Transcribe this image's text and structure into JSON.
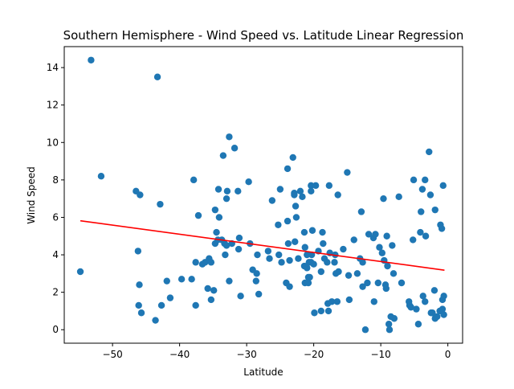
{
  "chart_data": {
    "type": "scatter",
    "title": "Southern Hemisphere - Wind Speed vs. Latitude Linear Regression",
    "xlabel": "Latitude",
    "ylabel": "Wind Speed",
    "xlim": [
      -57.2,
      2.2
    ],
    "ylim": [
      -0.72,
      15.12
    ],
    "x_ticks": [
      -50,
      -40,
      -30,
      -20,
      -10,
      0
    ],
    "y_ticks": [
      0,
      2,
      4,
      6,
      8,
      10,
      12,
      14
    ],
    "grid": false,
    "legend": "none",
    "colors": {
      "points": "#1f77b4",
      "regression": "#ff0000"
    },
    "regression": {
      "x": [
        -54.8,
        -0.5
      ],
      "y": [
        5.82,
        3.18
      ]
    },
    "points": [
      [
        -54.8,
        3.1
      ],
      [
        -53.2,
        14.4
      ],
      [
        -51.7,
        8.2
      ],
      [
        -46.5,
        7.4
      ],
      [
        -45.9,
        7.2
      ],
      [
        -46.2,
        4.2
      ],
      [
        -46.0,
        2.4
      ],
      [
        -46.1,
        1.3
      ],
      [
        -45.7,
        0.9
      ],
      [
        -43.6,
        0.5
      ],
      [
        -43.3,
        13.5
      ],
      [
        -42.9,
        6.7
      ],
      [
        -42.7,
        1.3
      ],
      [
        -41.9,
        2.6
      ],
      [
        -41.4,
        1.7
      ],
      [
        -39.7,
        2.7
      ],
      [
        -38.2,
        2.7
      ],
      [
        -37.9,
        8.0
      ],
      [
        -37.6,
        1.3
      ],
      [
        -37.6,
        3.6
      ],
      [
        -37.2,
        6.1
      ],
      [
        -36.6,
        3.5
      ],
      [
        -36.2,
        3.6
      ],
      [
        -35.8,
        2.2
      ],
      [
        -35.3,
        1.6
      ],
      [
        -35.6,
        3.8
      ],
      [
        -35.3,
        3.6
      ],
      [
        -34.9,
        2.1
      ],
      [
        -34.7,
        4.6
      ],
      [
        -34.7,
        6.4
      ],
      [
        -34.5,
        5.2
      ],
      [
        -34.2,
        7.5
      ],
      [
        -34.3,
        4.8
      ],
      [
        -34.1,
        6.0
      ],
      [
        -33.5,
        9.3
      ],
      [
        -33.7,
        4.8
      ],
      [
        -33.3,
        4.6
      ],
      [
        -33.0,
        4.5
      ],
      [
        -33.2,
        4.0
      ],
      [
        -32.9,
        7.4
      ],
      [
        -33.0,
        7.0
      ],
      [
        -32.6,
        10.3
      ],
      [
        -32.6,
        2.6
      ],
      [
        -32.2,
        4.6
      ],
      [
        -31.8,
        9.7
      ],
      [
        -31.3,
        7.4
      ],
      [
        -31.1,
        4.9
      ],
      [
        -31.2,
        4.3
      ],
      [
        -30.9,
        1.8
      ],
      [
        -29.7,
        7.9
      ],
      [
        -29.5,
        4.6
      ],
      [
        -29.1,
        3.2
      ],
      [
        -28.6,
        2.6
      ],
      [
        -28.4,
        4.0
      ],
      [
        -28.2,
        1.9
      ],
      [
        -28.5,
        3.0
      ],
      [
        -26.6,
        3.8
      ],
      [
        -26.2,
        6.9
      ],
      [
        -26.8,
        4.2
      ],
      [
        -25.3,
        5.6
      ],
      [
        -25.0,
        7.5
      ],
      [
        -25.2,
        4.0
      ],
      [
        -24.8,
        3.6
      ],
      [
        -24.1,
        2.5
      ],
      [
        -23.9,
        8.6
      ],
      [
        -23.9,
        5.8
      ],
      [
        -23.8,
        4.6
      ],
      [
        -23.6,
        2.3
      ],
      [
        -23.6,
        3.7
      ],
      [
        -23.1,
        9.2
      ],
      [
        -22.9,
        7.3
      ],
      [
        -22.9,
        7.2
      ],
      [
        -22.8,
        4.7
      ],
      [
        -22.7,
        6.6
      ],
      [
        -22.6,
        6.0
      ],
      [
        -22.3,
        3.8
      ],
      [
        -22.0,
        7.4
      ],
      [
        -21.7,
        7.1
      ],
      [
        -21.4,
        5.2
      ],
      [
        -21.3,
        4.4
      ],
      [
        -21.0,
        4.0
      ],
      [
        -21.4,
        3.4
      ],
      [
        -21.3,
        2.5
      ],
      [
        -21.0,
        3.3
      ],
      [
        -20.8,
        2.8
      ],
      [
        -20.7,
        3.6
      ],
      [
        -20.8,
        2.5
      ],
      [
        -20.6,
        2.8
      ],
      [
        -20.4,
        7.4
      ],
      [
        -20.4,
        7.7
      ],
      [
        -20.2,
        5.3
      ],
      [
        -20.4,
        3.6
      ],
      [
        -20.3,
        4.0
      ],
      [
        -20.0,
        3.5
      ],
      [
        -19.7,
        7.7
      ],
      [
        -19.9,
        0.9
      ],
      [
        -19.3,
        4.2
      ],
      [
        -18.9,
        3.1
      ],
      [
        -18.9,
        1.0
      ],
      [
        -18.7,
        5.2
      ],
      [
        -18.6,
        4.6
      ],
      [
        -18.4,
        3.8
      ],
      [
        -18.0,
        3.6
      ],
      [
        -17.9,
        1.4
      ],
      [
        -17.6,
        4.1
      ],
      [
        -17.3,
        1.5
      ],
      [
        -17.7,
        7.7
      ],
      [
        -17.8,
        1.0
      ],
      [
        -16.8,
        4.0
      ],
      [
        -16.9,
        3.6
      ],
      [
        -16.7,
        3.0
      ],
      [
        -16.5,
        1.5
      ],
      [
        -16.4,
        7.2
      ],
      [
        -16.3,
        3.1
      ],
      [
        -15.6,
        4.3
      ],
      [
        -15.0,
        8.4
      ],
      [
        -14.8,
        2.9
      ],
      [
        -14.7,
        1.6
      ],
      [
        -14.0,
        4.8
      ],
      [
        -13.5,
        3.0
      ],
      [
        -13.1,
        3.8
      ],
      [
        -12.9,
        6.3
      ],
      [
        -12.7,
        2.3
      ],
      [
        -12.7,
        3.6
      ],
      [
        -12.3,
        0.0
      ],
      [
        -12.0,
        2.5
      ],
      [
        -11.8,
        5.1
      ],
      [
        -11.1,
        4.9
      ],
      [
        -11.0,
        1.5
      ],
      [
        -10.8,
        5.1
      ],
      [
        -10.4,
        2.5
      ],
      [
        -10.2,
        4.4
      ],
      [
        -9.8,
        4.1
      ],
      [
        -9.6,
        7.0
      ],
      [
        -9.5,
        3.7
      ],
      [
        -9.3,
        2.4
      ],
      [
        -9.2,
        2.2
      ],
      [
        -9.1,
        5.0
      ],
      [
        -9.0,
        3.4
      ],
      [
        -8.8,
        0.3
      ],
      [
        -8.7,
        0.0
      ],
      [
        -8.5,
        0.7
      ],
      [
        -8.3,
        4.5
      ],
      [
        -8.1,
        3.0
      ],
      [
        -8.0,
        0.6
      ],
      [
        -7.3,
        7.1
      ],
      [
        -6.9,
        2.5
      ],
      [
        -5.8,
        1.5
      ],
      [
        -5.7,
        1.3
      ],
      [
        -5.5,
        1.2
      ],
      [
        -5.2,
        4.8
      ],
      [
        -5.1,
        8.0
      ],
      [
        -4.7,
        1.1
      ],
      [
        -4.4,
        0.3
      ],
      [
        -4.1,
        5.2
      ],
      [
        -4.0,
        6.3
      ],
      [
        -3.8,
        7.5
      ],
      [
        -3.7,
        1.8
      ],
      [
        -3.4,
        8.0
      ],
      [
        -3.3,
        5.0
      ],
      [
        -3.4,
        1.5
      ],
      [
        -2.8,
        9.5
      ],
      [
        -2.6,
        7.2
      ],
      [
        -2.5,
        0.9
      ],
      [
        -2.3,
        0.9
      ],
      [
        -2.0,
        2.1
      ],
      [
        -1.9,
        6.4
      ],
      [
        -1.9,
        0.6
      ],
      [
        -1.6,
        0.7
      ],
      [
        -1.2,
        1.0
      ],
      [
        -1.1,
        5.6
      ],
      [
        -0.9,
        5.4
      ],
      [
        -0.8,
        1.6
      ],
      [
        -0.8,
        1.1
      ],
      [
        -0.7,
        7.7
      ],
      [
        -0.6,
        1.8
      ],
      [
        -0.6,
        0.8
      ]
    ]
  }
}
